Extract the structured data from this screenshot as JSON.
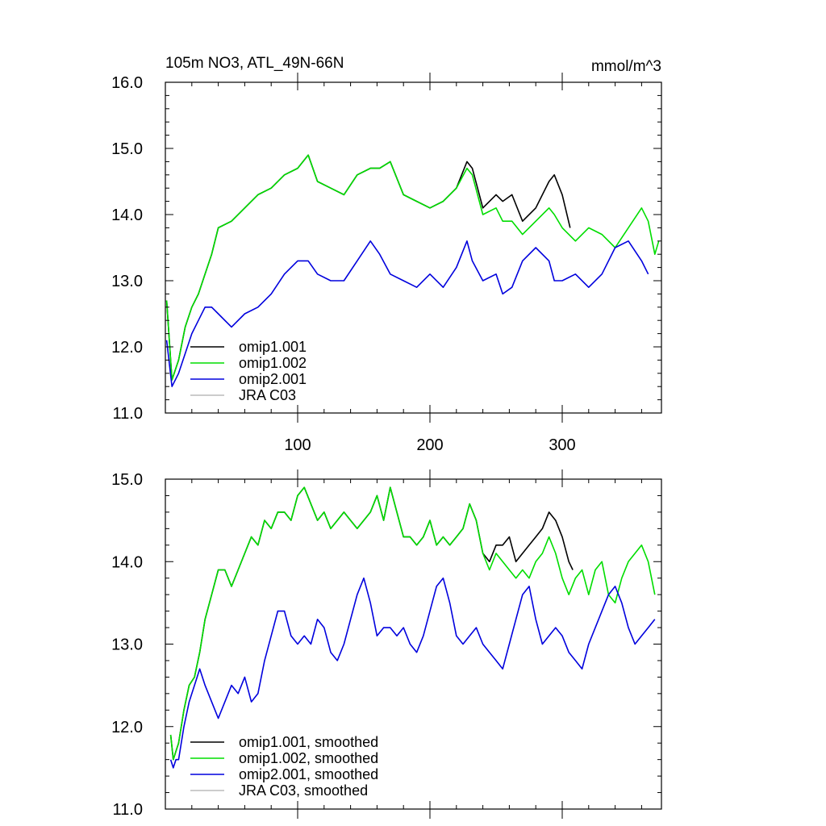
{
  "chart_data": [
    {
      "type": "line",
      "title": "105m NO3, ATL_49N-66N",
      "units": "mmol/m^3",
      "xlim": [
        0,
        375
      ],
      "ylim": [
        11.0,
        16.0
      ],
      "x_ticks": [
        100,
        200,
        300
      ],
      "x_tick_labels": [
        "100",
        "200",
        "300"
      ],
      "y_ticks": [
        11.0,
        12.0,
        13.0,
        14.0,
        15.0,
        16.0
      ],
      "y_tick_labels": [
        "11.0",
        "12.0",
        "13.0",
        "14.0",
        "15.0",
        "16.0"
      ],
      "legend_position": "bottom-left",
      "series": [
        {
          "name": "omip1.001",
          "color": "#000000",
          "x": [
            1,
            5,
            10,
            15,
            20,
            25,
            30,
            35,
            40,
            50,
            60,
            70,
            80,
            90,
            100,
            108,
            115,
            125,
            135,
            145,
            155,
            162,
            170,
            180,
            190,
            200,
            210,
            220,
            228,
            232,
            240,
            250,
            255,
            262,
            270,
            280,
            290,
            294,
            300,
            306
          ],
          "y": [
            12.7,
            11.5,
            11.8,
            12.3,
            12.6,
            12.8,
            13.1,
            13.4,
            13.8,
            13.9,
            14.1,
            14.3,
            14.4,
            14.6,
            14.7,
            14.9,
            14.5,
            14.4,
            14.3,
            14.6,
            14.7,
            14.7,
            14.8,
            14.3,
            14.2,
            14.1,
            14.2,
            14.4,
            14.8,
            14.7,
            14.1,
            14.3,
            14.2,
            14.3,
            13.9,
            14.1,
            14.5,
            14.6,
            14.3,
            13.8
          ]
        },
        {
          "name": "omip1.002",
          "color": "#00dd00",
          "x": [
            1,
            5,
            10,
            15,
            20,
            25,
            30,
            35,
            40,
            50,
            60,
            70,
            80,
            90,
            100,
            108,
            115,
            125,
            135,
            145,
            155,
            162,
            170,
            180,
            190,
            200,
            210,
            220,
            228,
            232,
            240,
            250,
            255,
            262,
            270,
            280,
            290,
            294,
            300,
            310,
            320,
            330,
            340,
            350,
            360,
            365,
            370,
            373
          ],
          "y": [
            12.7,
            11.5,
            11.8,
            12.3,
            12.6,
            12.8,
            13.1,
            13.4,
            13.8,
            13.9,
            14.1,
            14.3,
            14.4,
            14.6,
            14.7,
            14.9,
            14.5,
            14.4,
            14.3,
            14.6,
            14.7,
            14.7,
            14.8,
            14.3,
            14.2,
            14.1,
            14.2,
            14.4,
            14.7,
            14.6,
            14.0,
            14.1,
            13.9,
            13.9,
            13.7,
            13.9,
            14.1,
            14.0,
            13.8,
            13.6,
            13.8,
            13.7,
            13.5,
            13.8,
            14.1,
            13.9,
            13.4,
            13.6
          ]
        },
        {
          "name": "omip2.001",
          "color": "#0000dd",
          "x": [
            1,
            5,
            10,
            15,
            20,
            25,
            30,
            35,
            40,
            50,
            60,
            70,
            80,
            90,
            100,
            108,
            115,
            125,
            135,
            145,
            155,
            162,
            170,
            180,
            190,
            200,
            210,
            220,
            228,
            232,
            240,
            250,
            255,
            262,
            270,
            280,
            290,
            294,
            300,
            310,
            320,
            330,
            340,
            350,
            360,
            365
          ],
          "y": [
            12.1,
            11.4,
            11.6,
            11.9,
            12.2,
            12.4,
            12.6,
            12.6,
            12.5,
            12.3,
            12.5,
            12.6,
            12.8,
            13.1,
            13.3,
            13.3,
            13.1,
            13.0,
            13.0,
            13.3,
            13.6,
            13.4,
            13.1,
            13.0,
            12.9,
            13.1,
            12.9,
            13.2,
            13.6,
            13.3,
            13.0,
            13.1,
            12.8,
            12.9,
            13.3,
            13.5,
            13.3,
            13.0,
            13.0,
            13.1,
            12.9,
            13.1,
            13.5,
            13.6,
            13.3,
            13.1
          ]
        },
        {
          "name": "JRA C03",
          "color": "#bbbbbb",
          "x": [],
          "y": []
        }
      ]
    },
    {
      "type": "line",
      "xlim": [
        0,
        375
      ],
      "ylim": [
        11.0,
        15.0
      ],
      "y_ticks": [
        11.0,
        12.0,
        13.0,
        14.0,
        15.0
      ],
      "y_tick_labels": [
        "11.0",
        "12.0",
        "13.0",
        "14.0",
        "15.0"
      ],
      "legend_position": "bottom-left",
      "series": [
        {
          "name": "omip1.001, smoothed",
          "color": "#000000",
          "x": [
            4,
            6,
            8,
            10,
            14,
            18,
            22,
            26,
            30,
            35,
            40,
            45,
            50,
            55,
            60,
            65,
            70,
            75,
            80,
            85,
            90,
            95,
            100,
            105,
            110,
            115,
            120,
            125,
            130,
            135,
            140,
            145,
            150,
            155,
            160,
            165,
            170,
            175,
            180,
            185,
            190,
            195,
            200,
            205,
            210,
            215,
            220,
            225,
            230,
            235,
            240,
            245,
            250,
            255,
            260,
            265,
            270,
            275,
            280,
            285,
            290,
            295,
            300,
            305,
            308
          ],
          "y": [
            11.9,
            11.6,
            11.7,
            11.8,
            12.2,
            12.5,
            12.6,
            12.9,
            13.3,
            13.6,
            13.9,
            13.9,
            13.7,
            13.9,
            14.1,
            14.3,
            14.2,
            14.5,
            14.4,
            14.6,
            14.6,
            14.5,
            14.8,
            14.9,
            14.7,
            14.5,
            14.6,
            14.4,
            14.5,
            14.6,
            14.5,
            14.4,
            14.5,
            14.6,
            14.8,
            14.5,
            14.9,
            14.6,
            14.3,
            14.3,
            14.2,
            14.3,
            14.5,
            14.2,
            14.3,
            14.2,
            14.3,
            14.4,
            14.7,
            14.5,
            14.1,
            14.0,
            14.2,
            14.2,
            14.3,
            14.0,
            14.1,
            14.2,
            14.3,
            14.4,
            14.6,
            14.5,
            14.3,
            14.0,
            13.9
          ]
        },
        {
          "name": "omip1.002, smoothed",
          "color": "#00dd00",
          "x": [
            4,
            6,
            8,
            10,
            14,
            18,
            22,
            26,
            30,
            35,
            40,
            45,
            50,
            55,
            60,
            65,
            70,
            75,
            80,
            85,
            90,
            95,
            100,
            105,
            110,
            115,
            120,
            125,
            130,
            135,
            140,
            145,
            150,
            155,
            160,
            165,
            170,
            175,
            180,
            185,
            190,
            195,
            200,
            205,
            210,
            215,
            220,
            225,
            230,
            235,
            240,
            245,
            250,
            255,
            260,
            265,
            270,
            275,
            280,
            285,
            290,
            295,
            300,
            305,
            310,
            315,
            320,
            325,
            330,
            335,
            340,
            345,
            350,
            355,
            360,
            365,
            370
          ],
          "y": [
            11.9,
            11.6,
            11.7,
            11.8,
            12.2,
            12.5,
            12.6,
            12.9,
            13.3,
            13.6,
            13.9,
            13.9,
            13.7,
            13.9,
            14.1,
            14.3,
            14.2,
            14.5,
            14.4,
            14.6,
            14.6,
            14.5,
            14.8,
            14.9,
            14.7,
            14.5,
            14.6,
            14.4,
            14.5,
            14.6,
            14.5,
            14.4,
            14.5,
            14.6,
            14.8,
            14.5,
            14.9,
            14.6,
            14.3,
            14.3,
            14.2,
            14.3,
            14.5,
            14.2,
            14.3,
            14.2,
            14.3,
            14.4,
            14.7,
            14.5,
            14.1,
            13.9,
            14.1,
            14.0,
            13.9,
            13.8,
            13.9,
            13.8,
            14.0,
            14.1,
            14.3,
            14.1,
            13.8,
            13.6,
            13.8,
            13.9,
            13.6,
            13.9,
            14.0,
            13.6,
            13.5,
            13.8,
            14.0,
            14.1,
            14.2,
            14.0,
            13.6
          ]
        },
        {
          "name": "omip2.001, smoothed",
          "color": "#0000dd",
          "x": [
            4,
            6,
            8,
            10,
            14,
            18,
            22,
            26,
            30,
            35,
            40,
            45,
            50,
            55,
            60,
            65,
            70,
            75,
            80,
            85,
            90,
            95,
            100,
            105,
            110,
            115,
            120,
            125,
            130,
            135,
            140,
            145,
            150,
            155,
            160,
            165,
            170,
            175,
            180,
            185,
            190,
            195,
            200,
            205,
            210,
            215,
            220,
            225,
            230,
            235,
            240,
            245,
            250,
            255,
            260,
            265,
            270,
            275,
            280,
            285,
            290,
            295,
            300,
            305,
            310,
            315,
            320,
            325,
            330,
            335,
            340,
            345,
            350,
            355,
            360,
            365,
            370
          ],
          "y": [
            11.6,
            11.5,
            11.6,
            11.6,
            12.0,
            12.3,
            12.5,
            12.7,
            12.5,
            12.3,
            12.1,
            12.3,
            12.5,
            12.4,
            12.6,
            12.3,
            12.4,
            12.8,
            13.1,
            13.4,
            13.4,
            13.1,
            13.0,
            13.1,
            13.0,
            13.3,
            13.2,
            12.9,
            12.8,
            13.0,
            13.3,
            13.6,
            13.8,
            13.5,
            13.1,
            13.2,
            13.2,
            13.1,
            13.2,
            13.0,
            12.9,
            13.1,
            13.4,
            13.7,
            13.8,
            13.5,
            13.1,
            13.0,
            13.1,
            13.2,
            13.0,
            12.9,
            12.8,
            12.7,
            13.0,
            13.3,
            13.6,
            13.7,
            13.3,
            13.0,
            13.1,
            13.2,
            13.1,
            12.9,
            12.8,
            12.7,
            13.0,
            13.2,
            13.4,
            13.6,
            13.7,
            13.5,
            13.2,
            13.0,
            13.1,
            13.2,
            13.3
          ]
        },
        {
          "name": "JRA C03, smoothed",
          "color": "#bbbbbb",
          "x": [],
          "y": []
        }
      ]
    }
  ]
}
